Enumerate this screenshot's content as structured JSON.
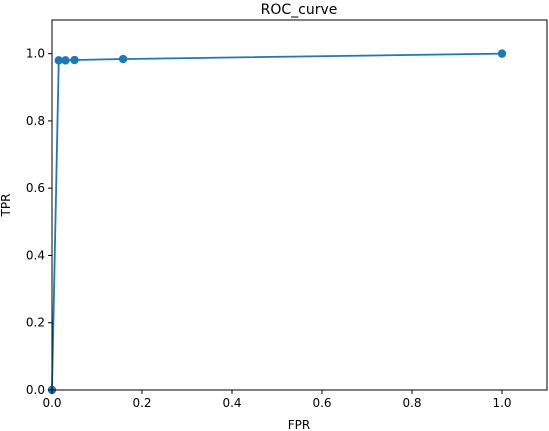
{
  "chart_data": {
    "type": "line",
    "title": "ROC_curve",
    "xlabel": "FPR",
    "ylabel": "TPR",
    "xlim": [
      0,
      1.1
    ],
    "ylim": [
      0,
      1.1
    ],
    "xticks": [
      0.0,
      0.2,
      0.4,
      0.6,
      0.8,
      1.0
    ],
    "yticks": [
      0.0,
      0.2,
      0.4,
      0.6,
      0.8,
      1.0
    ],
    "xtick_labels": [
      "0.0",
      "0.2",
      "0.4",
      "0.6",
      "0.8",
      "1.0"
    ],
    "ytick_labels": [
      "0.0",
      "0.2",
      "0.4",
      "0.6",
      "0.8",
      "1.0"
    ],
    "grid": false,
    "markers": true,
    "series": [
      {
        "x": [
          0.0,
          0.015,
          0.03,
          0.05,
          0.158,
          1.0
        ],
        "y": [
          0.0,
          0.98,
          0.98,
          0.981,
          0.984,
          1.0
        ],
        "color": "#1f77b4"
      }
    ]
  }
}
